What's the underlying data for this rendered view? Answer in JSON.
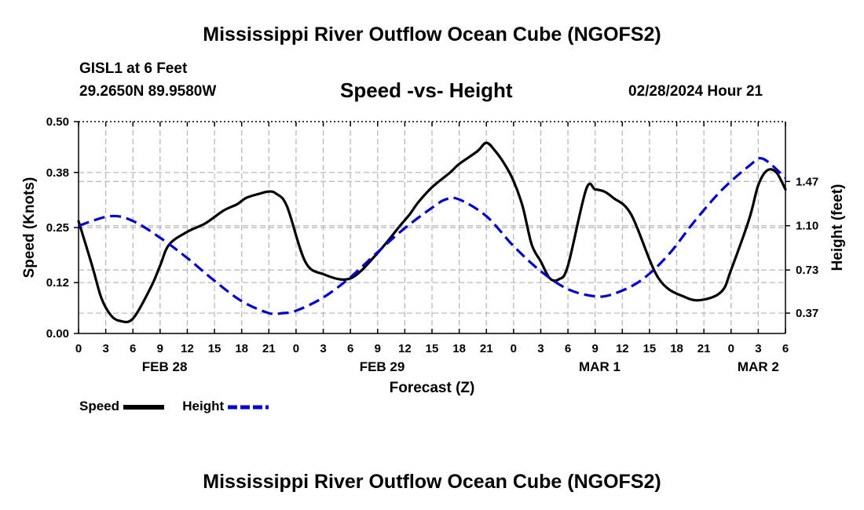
{
  "page": {
    "title_top": "Mississippi River Outflow Ocean Cube (NGOFS2)",
    "title_bottom": "Mississippi River Outflow Ocean Cube (NGOFS2)",
    "station": "GISL1 at 6 Feet",
    "coords": "29.2650N  89.9580W",
    "subtitle": "Speed -vs- Height",
    "datetime": "02/28/2024 Hour 21"
  },
  "chart_data": {
    "type": "line",
    "xlabel": "Forecast (Z)",
    "ylabel_left": "Speed (Knots)",
    "ylabel_right": "Height (feet)",
    "x_range_hours": [
      0,
      78
    ],
    "x_tick_labels": [
      "0",
      "3",
      "6",
      "9",
      "12",
      "15",
      "18",
      "21",
      "0",
      "3",
      "6",
      "9",
      "12",
      "15",
      "18",
      "21",
      "0",
      "3",
      "6",
      "9",
      "12",
      "15",
      "18",
      "21",
      "0",
      "3",
      "6"
    ],
    "date_labels": [
      {
        "label": "FEB 28",
        "hour": 9.5
      },
      {
        "label": "FEB 29",
        "hour": 33.5
      },
      {
        "label": "MAR 1",
        "hour": 57.5
      },
      {
        "label": "MAR 2",
        "hour": 75
      }
    ],
    "left_axis": {
      "range": [
        0,
        0.5
      ],
      "ticks": [
        0.0,
        0.12,
        0.25,
        0.38,
        0.5
      ],
      "tick_labels": [
        "0.00",
        "0.12",
        "0.25",
        "0.38",
        "0.50"
      ]
    },
    "right_axis": {
      "range": [
        0.2,
        1.97
      ],
      "ticks": [
        0.37,
        0.73,
        1.1,
        1.47
      ],
      "tick_labels": [
        "0.37",
        "0.73",
        "1.10",
        "1.47"
      ]
    },
    "series": [
      {
        "name": "Speed",
        "axis": "left",
        "color": "#000000",
        "dash": "solid",
        "x": [
          0,
          1.5,
          2.5,
          3.5,
          4.5,
          6,
          8,
          9,
          10,
          12,
          14,
          16,
          17.5,
          18.5,
          20,
          21,
          21.8,
          23,
          25,
          27,
          30,
          33,
          35.5,
          36.5,
          37.5,
          39,
          41,
          42,
          44,
          45,
          46,
          47,
          48,
          49,
          50,
          51,
          52,
          53,
          54,
          56,
          57,
          58,
          59,
          61,
          64,
          67,
          69,
          71,
          72,
          74,
          75,
          76,
          77,
          78
        ],
        "y": [
          0.265,
          0.16,
          0.085,
          0.045,
          0.03,
          0.035,
          0.11,
          0.16,
          0.21,
          0.24,
          0.26,
          0.29,
          0.305,
          0.32,
          0.33,
          0.335,
          0.33,
          0.3,
          0.17,
          0.14,
          0.13,
          0.19,
          0.255,
          0.28,
          0.31,
          0.345,
          0.38,
          0.4,
          0.43,
          0.45,
          0.43,
          0.4,
          0.36,
          0.3,
          0.21,
          0.17,
          0.13,
          0.128,
          0.16,
          0.34,
          0.34,
          0.335,
          0.32,
          0.28,
          0.13,
          0.085,
          0.08,
          0.1,
          0.15,
          0.27,
          0.35,
          0.385,
          0.38,
          0.34
        ]
      },
      {
        "name": "Height",
        "axis": "right",
        "color": "#0000cc",
        "dash": "dashed",
        "x": [
          0,
          3.5,
          6,
          9,
          12,
          15,
          18,
          21,
          22.5,
          24,
          27,
          30,
          33,
          36,
          39,
          40.5,
          42,
          45,
          48,
          51,
          54,
          57,
          59,
          62,
          65,
          68,
          71,
          74,
          75.5,
          78
        ],
        "y": [
          1.1,
          1.18,
          1.14,
          1.0,
          0.83,
          0.64,
          0.47,
          0.37,
          0.37,
          0.39,
          0.5,
          0.67,
          0.88,
          1.08,
          1.25,
          1.32,
          1.32,
          1.18,
          0.93,
          0.72,
          0.57,
          0.51,
          0.53,
          0.64,
          0.85,
          1.14,
          1.4,
          1.6,
          1.66,
          1.5
        ]
      }
    ]
  },
  "legend": {
    "speed_label": "Speed",
    "height_label": "Height",
    "speed_color": "#000000",
    "height_color": "#0000cc"
  }
}
